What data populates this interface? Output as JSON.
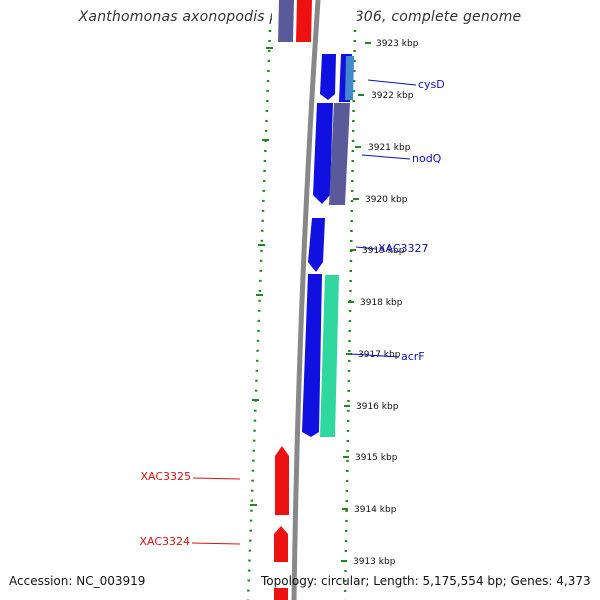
{
  "title": "Xanthomonas axonopodis pv. citri str. 306, complete genome",
  "accession_label": "Accession: NC_003919",
  "topology_label": "Topology: circular; Length: 5,175,554 bp; Genes: 4,373",
  "colors": {
    "forward_gene": "#1010e0",
    "reverse_gene": "#ee1111",
    "purple_gene": "#5a5a9a",
    "teal_gene": "#30d8a0",
    "backbone": "#888888",
    "tick_green": "#228822",
    "label_blue": "#1010c0",
    "label_red": "#dd1111"
  },
  "map": {
    "ticks": [
      {
        "label": "3923 kbp"
      },
      {
        "label": "3922 kbp"
      },
      {
        "label": "3921 kbp"
      },
      {
        "label": "3920 kbp"
      },
      {
        "label": "3919 kbp"
      },
      {
        "label": "3918 kbp"
      },
      {
        "label": "3917 kbp"
      },
      {
        "label": "3916 kbp"
      },
      {
        "label": "3915 kbp"
      },
      {
        "label": "3914 kbp"
      },
      {
        "label": "3913 kbp"
      }
    ],
    "gene_labels": [
      {
        "text": "cysD",
        "color": "blue"
      },
      {
        "text": "nodQ",
        "color": "blue"
      },
      {
        "text": "XAC3327",
        "color": "blue"
      },
      {
        "text": "acrF",
        "color": "blue"
      },
      {
        "text": "XAC3325",
        "color": "red"
      },
      {
        "text": "XAC3324",
        "color": "red"
      }
    ]
  }
}
